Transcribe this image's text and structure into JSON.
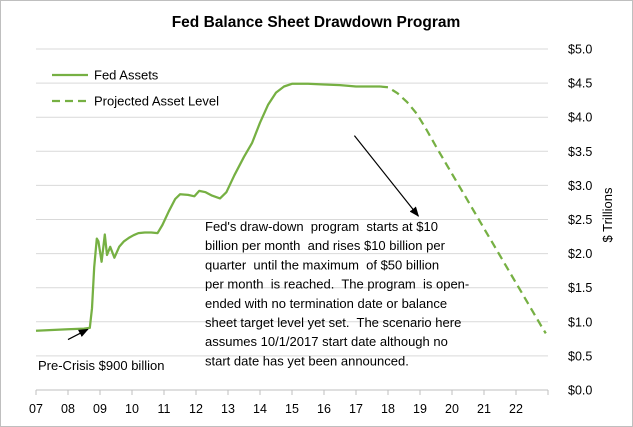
{
  "chart_data": {
    "type": "line",
    "title": "Fed Balance Sheet Drawdown Program",
    "xlabel": "",
    "ylabel": "$ Trillions",
    "xlim": [
      2007,
      2023
    ],
    "ylim": [
      0,
      5
    ],
    "x_tick_labels": [
      "07",
      "08",
      "09",
      "10",
      "11",
      "12",
      "13",
      "14",
      "15",
      "16",
      "17",
      "18",
      "19",
      "20",
      "21",
      "22"
    ],
    "x_tick_values": [
      2007,
      2008,
      2009,
      2010,
      2011,
      2012,
      2013,
      2014,
      2015,
      2016,
      2017,
      2018,
      2019,
      2020,
      2021,
      2022
    ],
    "y_tick_labels": [
      "$0.0",
      "$0.5",
      "$1.0",
      "$1.5",
      "$2.0",
      "$2.5",
      "$3.0",
      "$3.5",
      "$4.0",
      "$4.5",
      "$5.0"
    ],
    "y_tick_values": [
      0,
      0.5,
      1,
      1.5,
      2,
      2.5,
      3,
      3.5,
      4,
      4.5,
      5
    ],
    "legend_position": "top-left",
    "color": "#76b043",
    "series": [
      {
        "name": "Fed Assets",
        "style": "solid",
        "points": [
          [
            2007.0,
            0.87
          ],
          [
            2007.5,
            0.88
          ],
          [
            2008.0,
            0.89
          ],
          [
            2008.5,
            0.9
          ],
          [
            2008.68,
            0.91
          ],
          [
            2008.75,
            1.2
          ],
          [
            2008.82,
            1.8
          ],
          [
            2008.9,
            2.22
          ],
          [
            2008.95,
            2.18
          ],
          [
            2009.05,
            1.88
          ],
          [
            2009.15,
            2.28
          ],
          [
            2009.22,
            1.98
          ],
          [
            2009.32,
            2.1
          ],
          [
            2009.45,
            1.94
          ],
          [
            2009.6,
            2.1
          ],
          [
            2009.75,
            2.18
          ],
          [
            2009.9,
            2.23
          ],
          [
            2010.05,
            2.27
          ],
          [
            2010.2,
            2.3
          ],
          [
            2010.4,
            2.31
          ],
          [
            2010.6,
            2.31
          ],
          [
            2010.8,
            2.3
          ],
          [
            2010.95,
            2.42
          ],
          [
            2011.15,
            2.62
          ],
          [
            2011.35,
            2.8
          ],
          [
            2011.5,
            2.87
          ],
          [
            2011.75,
            2.86
          ],
          [
            2011.95,
            2.84
          ],
          [
            2012.1,
            2.92
          ],
          [
            2012.3,
            2.9
          ],
          [
            2012.5,
            2.85
          ],
          [
            2012.75,
            2.81
          ],
          [
            2012.95,
            2.9
          ],
          [
            2013.2,
            3.15
          ],
          [
            2013.5,
            3.42
          ],
          [
            2013.75,
            3.62
          ],
          [
            2014.0,
            3.92
          ],
          [
            2014.25,
            4.18
          ],
          [
            2014.5,
            4.36
          ],
          [
            2014.75,
            4.45
          ],
          [
            2015.0,
            4.49
          ],
          [
            2015.5,
            4.49
          ],
          [
            2016.0,
            4.48
          ],
          [
            2016.5,
            4.47
          ],
          [
            2017.0,
            4.45
          ],
          [
            2017.5,
            4.45
          ],
          [
            2017.75,
            4.45
          ]
        ]
      },
      {
        "name": "Projected Asset Level",
        "style": "dashed",
        "points": [
          [
            2017.75,
            4.45
          ],
          [
            2018.0,
            4.44
          ],
          [
            2018.3,
            4.35
          ],
          [
            2018.6,
            4.22
          ],
          [
            2018.9,
            4.05
          ],
          [
            2019.2,
            3.82
          ],
          [
            2019.5,
            3.57
          ],
          [
            2019.8,
            3.33
          ],
          [
            2020.1,
            3.09
          ],
          [
            2020.4,
            2.85
          ],
          [
            2020.7,
            2.61
          ],
          [
            2021.0,
            2.37
          ],
          [
            2021.3,
            2.13
          ],
          [
            2021.6,
            1.89
          ],
          [
            2021.9,
            1.65
          ],
          [
            2022.2,
            1.41
          ],
          [
            2022.5,
            1.17
          ],
          [
            2022.8,
            0.93
          ],
          [
            2022.93,
            0.83
          ]
        ]
      }
    ],
    "annotations": [
      {
        "id": "program",
        "lines": [
          "Fed's draw-down  program  starts at $10",
          "billion per month  and rises $10 billion per",
          "quarter  until the maximum  of $50 billion",
          "per month  is reached.  The program  is open-",
          "ended with no termination date or balance",
          "sheet target level yet set.  The scenario here",
          "assumes 10/1/2017 start date although no",
          "start date has yet been announced."
        ],
        "arrow_from": [
          2016.95,
          3.73
        ],
        "arrow_to": [
          2018.95,
          2.55
        ]
      },
      {
        "id": "precrisis",
        "text": "Pre-Crisis $900 billion",
        "arrow_from": [
          2008.0,
          0.74
        ],
        "arrow_to": [
          2008.62,
          0.89
        ]
      }
    ]
  }
}
